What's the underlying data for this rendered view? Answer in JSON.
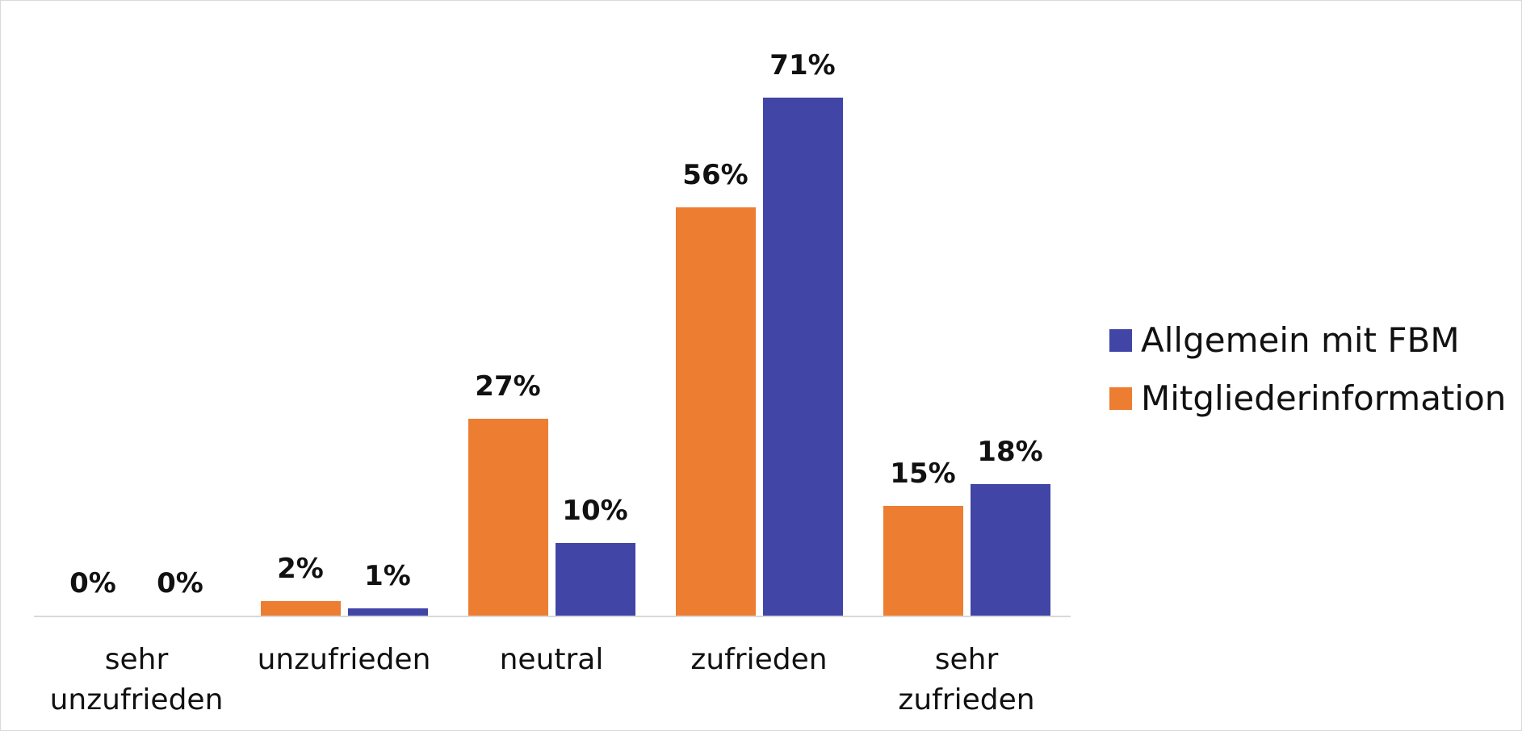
{
  "chart_data": {
    "type": "bar",
    "categories": [
      "sehr unzufrieden",
      "unzufrieden",
      "neutral",
      "zufrieden",
      "sehr zufrieden"
    ],
    "series": [
      {
        "name": "Mitgliederinformation",
        "color": "#ED7D31",
        "values": [
          0,
          2,
          27,
          56,
          15
        ],
        "value_labels": [
          "0%",
          "2%",
          "27%",
          "56%",
          "15%"
        ]
      },
      {
        "name": "Allgemein mit FBM",
        "color": "#4145A6",
        "values": [
          0,
          1,
          10,
          71,
          18
        ],
        "value_labels": [
          "0%",
          "1%",
          "10%",
          "71%",
          "18%"
        ]
      }
    ],
    "legend": "right"
  }
}
